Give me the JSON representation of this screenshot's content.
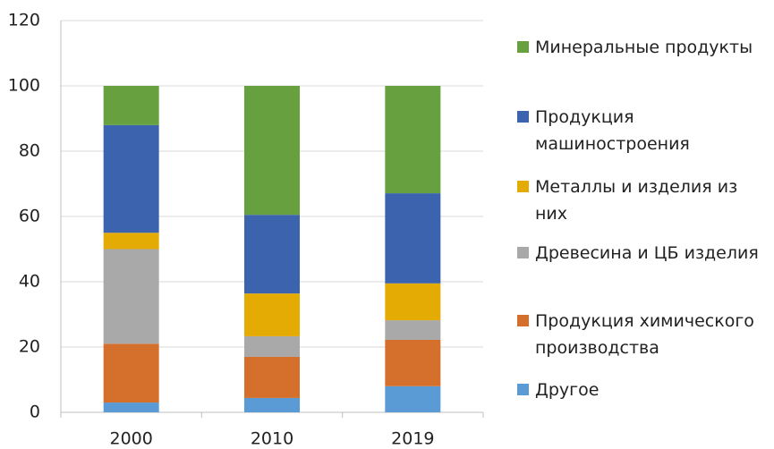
{
  "chart_data": {
    "type": "stacked_bar",
    "categories": [
      "2000",
      "2010",
      "2019"
    ],
    "series": [
      {
        "name": "Другое",
        "color": "#5b9bd5",
        "values": [
          3,
          4.4,
          8
        ]
      },
      {
        "name": "Продукция химического производства",
        "color": "#d5702c",
        "values": [
          18,
          12.6,
          14.2
        ]
      },
      {
        "name": "Древесина и ЦБ изделия",
        "color": "#a9a9a9",
        "values": [
          29,
          6.3,
          6
        ]
      },
      {
        "name": "Металлы и изделия из них",
        "color": "#e5ab05",
        "values": [
          5,
          13.1,
          11.3
        ]
      },
      {
        "name": "Продукция машиностроения",
        "color": "#3c64ae",
        "values": [
          33,
          24.1,
          27.6
        ]
      },
      {
        "name": "Минеральные продукты",
        "color": "#66a03f",
        "values": [
          12,
          39.5,
          32.9
        ]
      }
    ],
    "ylim": [
      0,
      120
    ],
    "yticks": [
      0,
      20,
      40,
      60,
      80,
      100,
      120
    ],
    "grid": true,
    "legend": "right"
  }
}
